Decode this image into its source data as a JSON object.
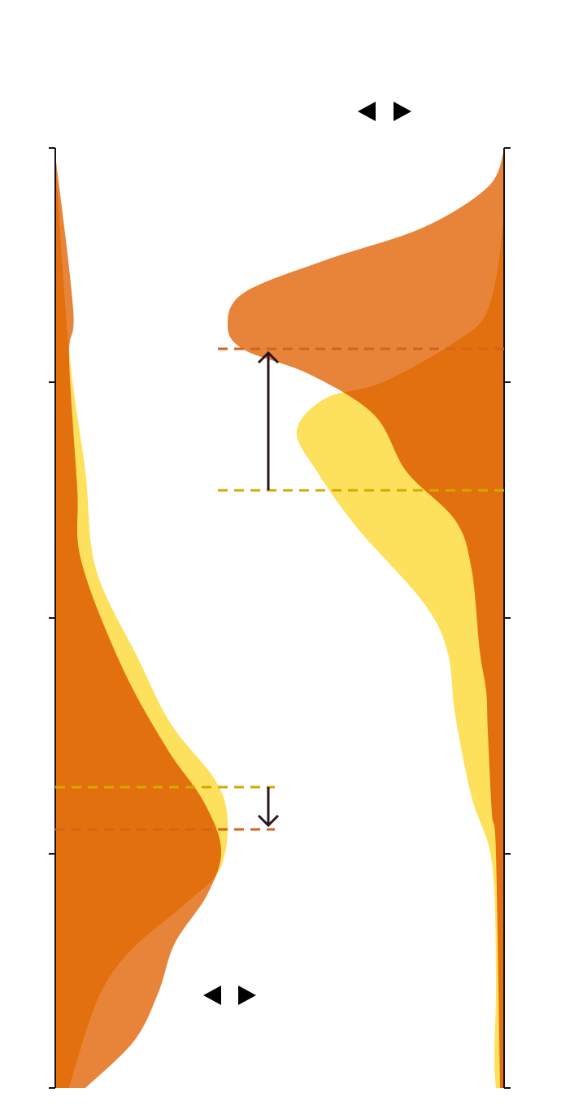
{
  "chart_data": {
    "type": "density",
    "colors": [
      "#e3700f",
      "#e8833a",
      "#fde05c",
      "#d0661c",
      "#d4a800"
    ]
  }
}
